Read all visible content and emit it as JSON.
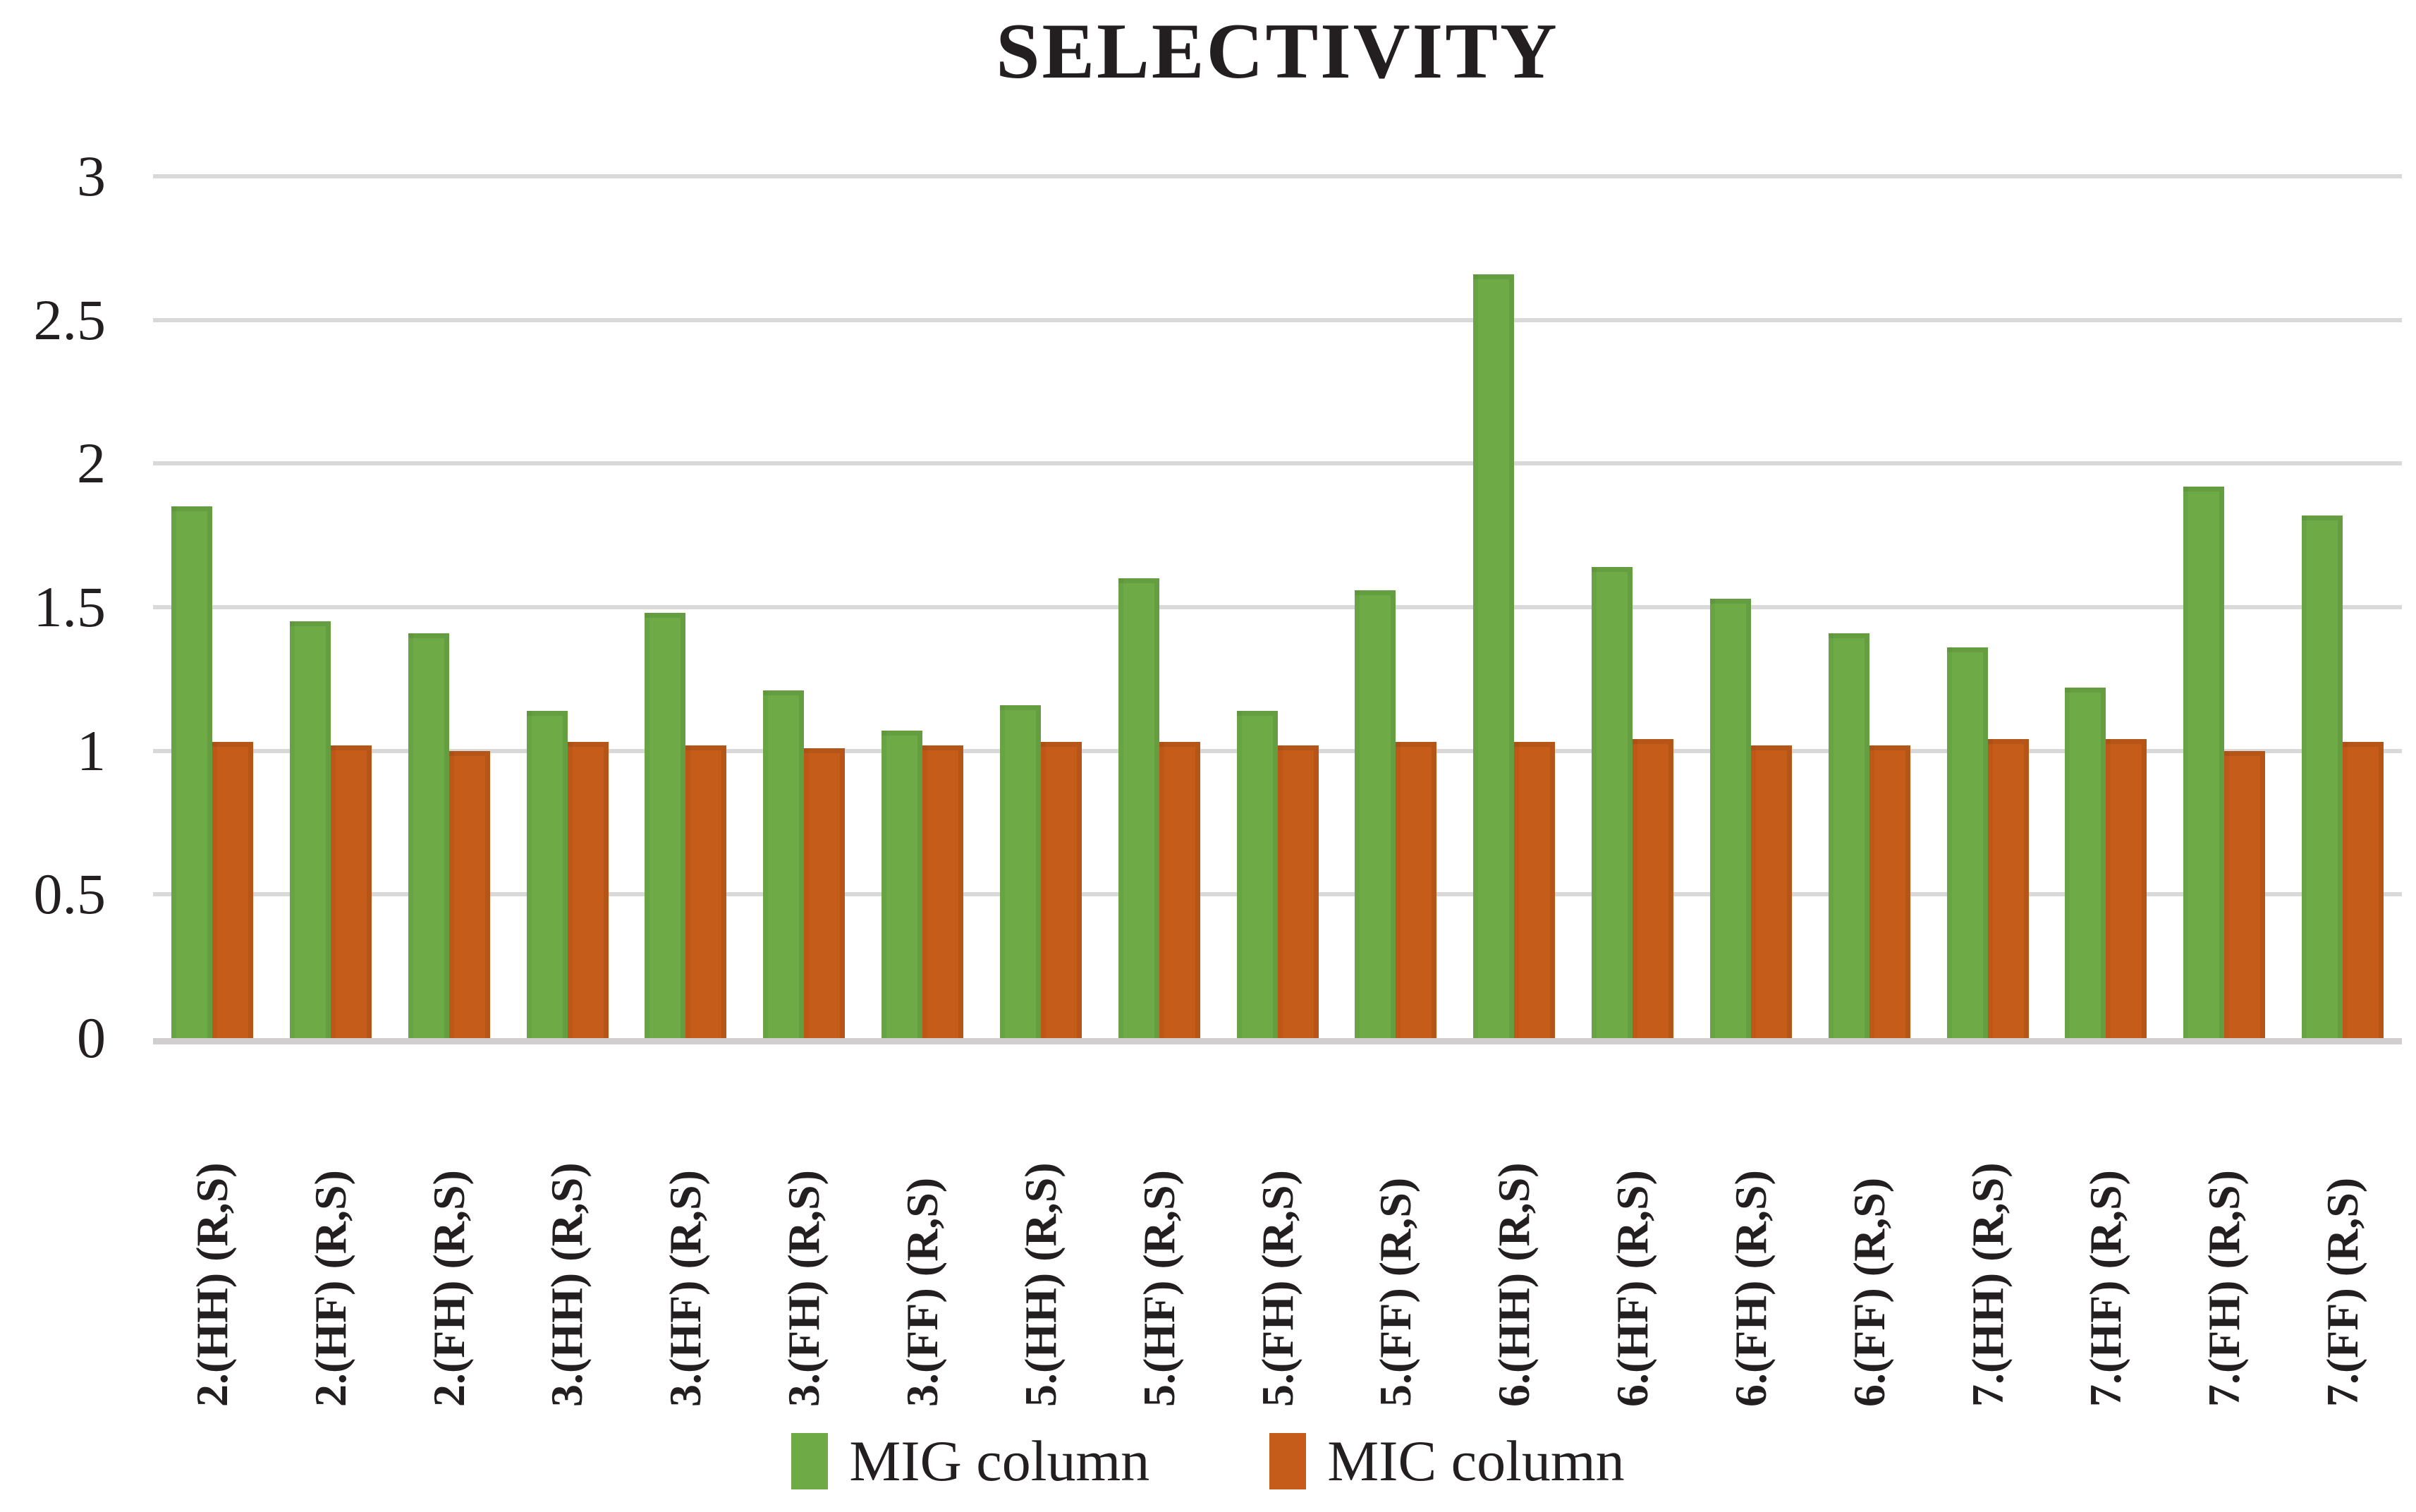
{
  "title": "SELECTIVITY",
  "chart_data": {
    "type": "bar",
    "title": "SELECTIVITY",
    "categories": [
      "2.(HH) (R,S)",
      "2.(HF) (R,S)",
      "2.(FH) (R,S)",
      "3.(HH) (R,S)",
      "3.(HF) (R,S)",
      "3.(FH) (R,S)",
      "3.(FF) (R,S)",
      "5.(HH) (R,S)",
      "5.(HF) (R,S)",
      "5.(FH) (R,S)",
      "5.(FF) (R,S)",
      "6.(HH) (R,S)",
      "6.(HF) (R,S)",
      "6.(FH) (R,S)",
      "6.(FF) (R,S)",
      "7.(HH) (R,S)",
      "7.(HF) (R,S)",
      "7.(FH) (R,S)",
      "7.(FF) (R,S)"
    ],
    "series": [
      {
        "name": "MIG column",
        "color": "#6EAB47",
        "values": [
          1.85,
          1.45,
          1.41,
          1.14,
          1.48,
          1.21,
          1.07,
          1.16,
          1.6,
          1.14,
          1.56,
          2.66,
          1.64,
          1.53,
          1.41,
          1.36,
          1.22,
          1.92,
          1.82
        ]
      },
      {
        "name": "MIC column",
        "color": "#C55C1A",
        "values": [
          1.03,
          1.02,
          1.0,
          1.03,
          1.02,
          1.01,
          1.02,
          1.03,
          1.03,
          1.02,
          1.03,
          1.03,
          1.04,
          1.02,
          1.02,
          1.04,
          1.04,
          1.0,
          1.03
        ]
      }
    ],
    "xlabel": "",
    "ylabel": "",
    "ylim": [
      0,
      3
    ],
    "yticks": [
      0,
      0.5,
      1,
      1.5,
      2,
      2.5,
      3
    ],
    "ytick_labels": [
      "0",
      "0.5",
      "1",
      "1.5",
      "2",
      "2.5",
      "3"
    ],
    "grid": true,
    "legend_position": "bottom"
  },
  "colors": {
    "grid": "#D9D9D9",
    "axis": "#D0CECE",
    "text": "#231F20",
    "background": "#FFFFFF"
  }
}
